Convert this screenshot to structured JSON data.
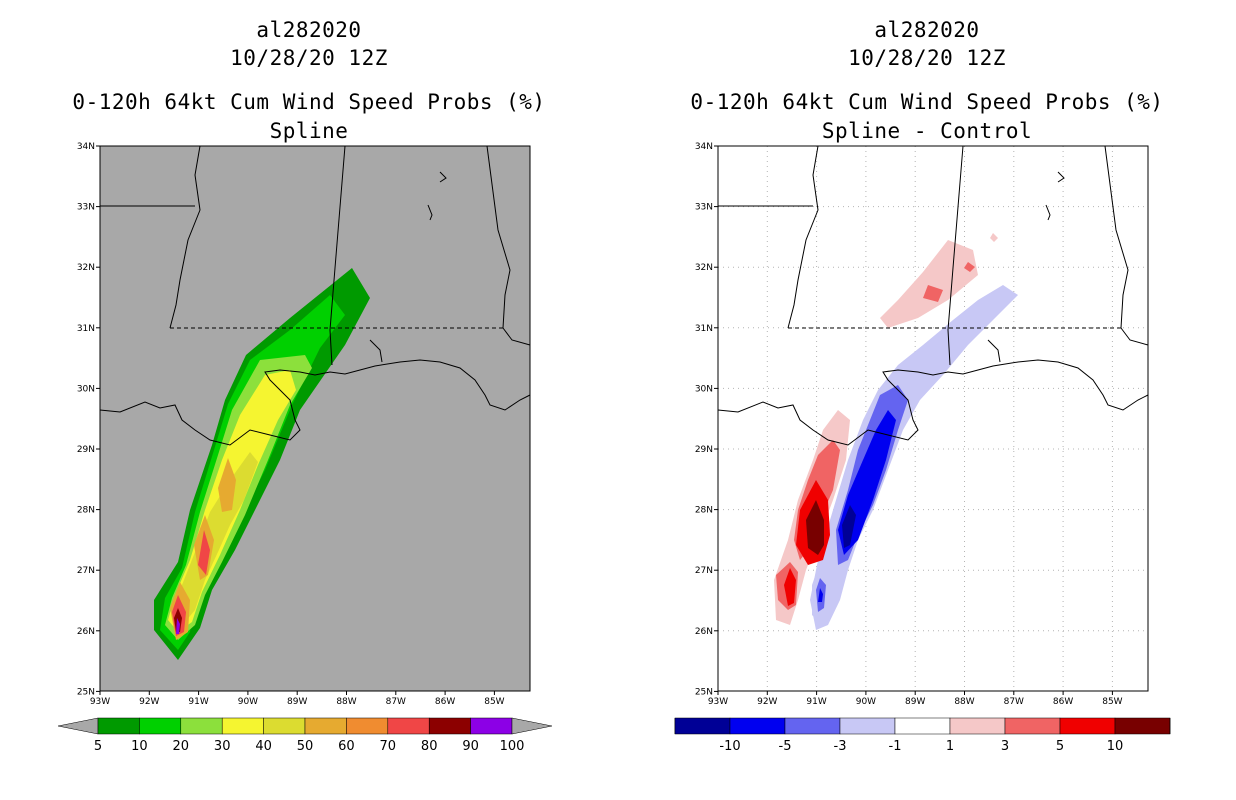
{
  "left": {
    "storm_id": "al282020",
    "date": "10/28/20 12Z",
    "product": "0-120h 64kt Cum Wind Speed Probs (%)",
    "subtitle": "Spline",
    "background": "#a8a8a8",
    "lat_labels": [
      "34N",
      "33N",
      "32N",
      "31N",
      "30N",
      "29N",
      "28N",
      "27N",
      "26N",
      "25N"
    ],
    "lon_labels": [
      "93W",
      "92W",
      "91W",
      "90W",
      "89W",
      "88W",
      "87W",
      "86W",
      "85W"
    ],
    "colorbar": {
      "labels": [
        "5",
        "10",
        "20",
        "30",
        "40",
        "50",
        "60",
        "70",
        "80",
        "90",
        "100"
      ],
      "colors": [
        "#009a00",
        "#00d000",
        "#8ce03c",
        "#f5f530",
        "#dcdc30",
        "#e6aa30",
        "#f08c30",
        "#f04646",
        "#8c0000",
        "#8c00e6"
      ]
    }
  },
  "right": {
    "storm_id": "al282020",
    "date": "10/28/20 12Z",
    "product": "0-120h 64kt Cum Wind Speed Probs (%)",
    "subtitle": "Spline - Control",
    "background": "#ffffff",
    "lat_labels": [
      "34N",
      "33N",
      "32N",
      "31N",
      "30N",
      "29N",
      "28N",
      "27N",
      "26N",
      "25N"
    ],
    "lon_labels": [
      "93W",
      "92W",
      "91W",
      "90W",
      "89W",
      "88W",
      "87W",
      "86W",
      "85W"
    ],
    "colorbar": {
      "labels": [
        "-10",
        "-5",
        "-3",
        "-1",
        "1",
        "3",
        "5",
        "10"
      ],
      "colors": [
        "#000096",
        "#0000f0",
        "#6464f0",
        "#c8c8f5",
        "#ffffff",
        "#f5c8c8",
        "#f06464",
        "#f00000",
        "#780000"
      ]
    }
  }
}
